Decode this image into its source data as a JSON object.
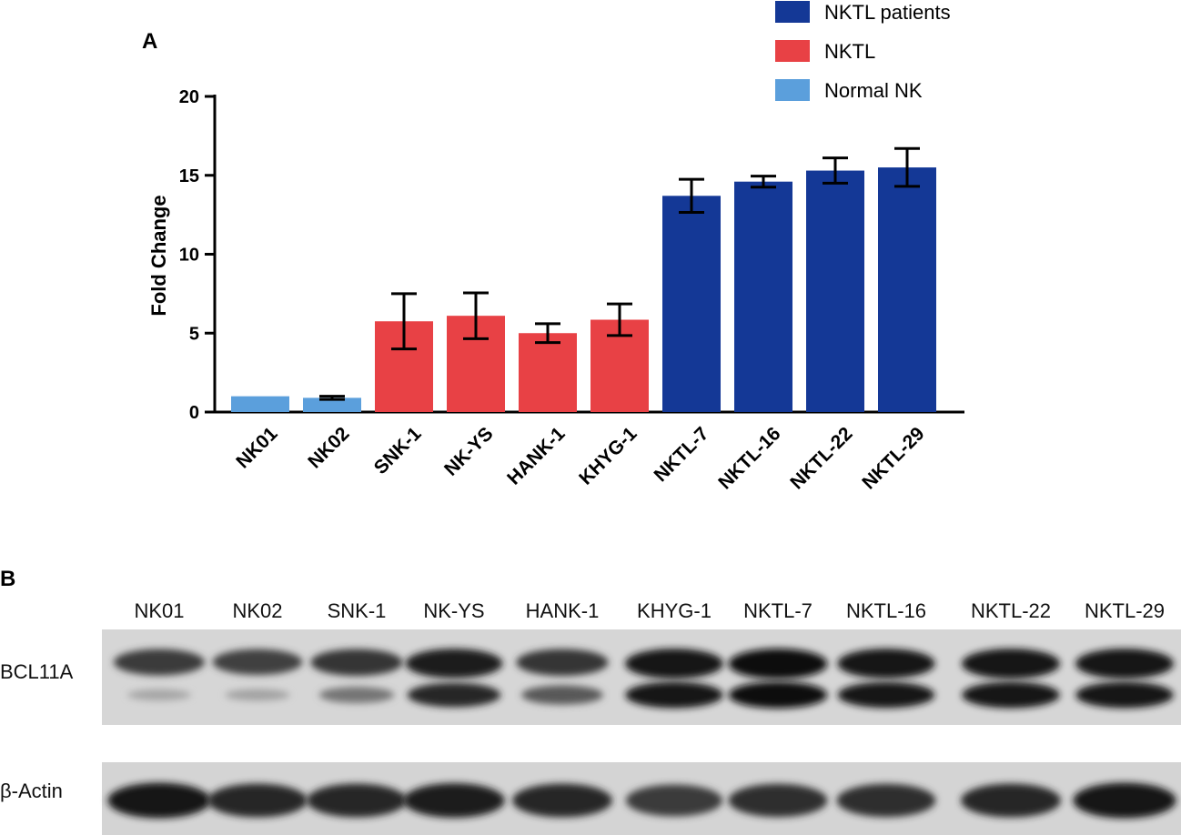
{
  "panel_a": {
    "letter": "A"
  },
  "panel_b": {
    "letter": "B",
    "lanes": [
      "NK01",
      "NK02",
      "SNK-1",
      "NK-YS",
      "HANK-1",
      "KHYG-1",
      "NKTL-7",
      "NKTL-16",
      "NKTL-22",
      "NKTL-29"
    ],
    "rows": [
      {
        "label": "BCL11A",
        "upper_band_intensity": [
          0.75,
          0.72,
          0.78,
          0.92,
          0.78,
          0.95,
          0.97,
          0.93,
          0.95,
          0.95
        ],
        "lower_band_intensity": [
          0.2,
          0.22,
          0.45,
          0.85,
          0.6,
          0.95,
          0.97,
          0.93,
          0.95,
          0.95
        ]
      },
      {
        "label": "β-Actin",
        "band_intensity": [
          0.95,
          0.85,
          0.85,
          0.9,
          0.85,
          0.75,
          0.82,
          0.82,
          0.85,
          0.95
        ]
      }
    ]
  },
  "chart_data": {
    "type": "bar",
    "title": "",
    "xlabel": "",
    "ylabel": "Fold Change",
    "ylim": [
      0,
      20
    ],
    "yticks": [
      "0",
      "5",
      "10",
      "15",
      "20"
    ],
    "grid": false,
    "legend_position": "top-right",
    "categories": [
      "NK01",
      "NK02",
      "SNK-1",
      "NK-YS",
      "HANK-1",
      "KHYG-1",
      "NKTL-7",
      "NKTL-16",
      "NKTL-22",
      "NKTL-29"
    ],
    "values": [
      1.0,
      0.9,
      5.75,
      6.1,
      5.0,
      5.85,
      13.7,
      14.6,
      15.3,
      15.5
    ],
    "errors": [
      0.0,
      0.1,
      1.75,
      1.45,
      0.6,
      1.0,
      1.05,
      0.35,
      0.8,
      1.2
    ],
    "groups": [
      "Normal NK",
      "Normal NK",
      "NKTL",
      "NKTL",
      "NKTL",
      "NKTL",
      "NKTL patients",
      "NKTL patients",
      "NKTL patients",
      "NKTL patients"
    ],
    "legend": [
      {
        "name": "NKTL patients",
        "color": "#143896"
      },
      {
        "name": "NKTL",
        "color": "#e84145"
      },
      {
        "name": "Normal NK",
        "color": "#5b9fdc"
      }
    ]
  }
}
